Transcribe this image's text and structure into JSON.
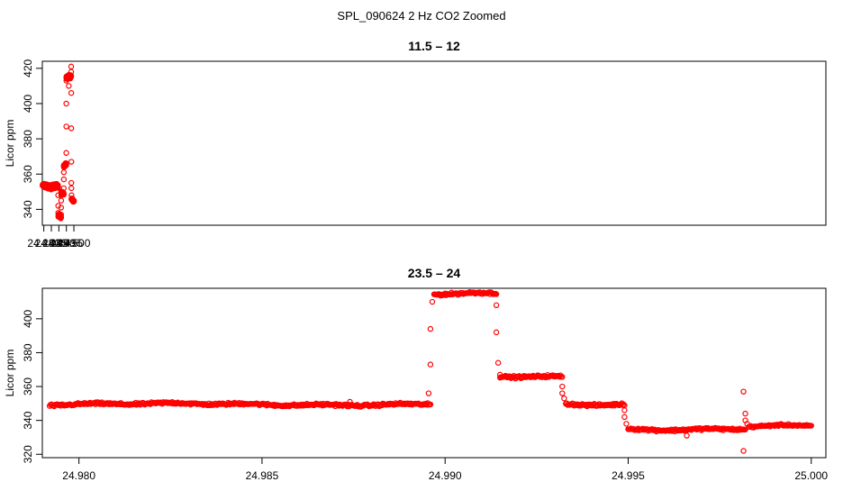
{
  "figure": {
    "title": "SPL_090624  2 Hz CO2 Zoomed",
    "point_color": "#ff0000"
  },
  "chart_data": [
    {
      "type": "scatter",
      "title": "11.5 – 12",
      "xlabel": "",
      "ylabel": "Licor ppm",
      "xlim": [
        24.479,
        25.0004
      ],
      "ylim": [
        331,
        424
      ],
      "xticks": [
        "24.480",
        "24.485",
        "24.490",
        "24.495",
        "24.500"
      ],
      "xtick_values": [
        24.48,
        24.485,
        24.49,
        24.495,
        24.5
      ],
      "yticks": [
        "340",
        "360",
        "380",
        "400",
        "420"
      ],
      "ytick_values": [
        340,
        360,
        380,
        400,
        420
      ],
      "marker": "open-circle",
      "segments": [
        {
          "x0": 24.4792,
          "x1": 24.4895,
          "y": 353,
          "noise": 1.2
        },
        {
          "x0": 24.4897,
          "x1": 24.4914,
          "y": 336,
          "noise": 1.0
        },
        {
          "x0": 24.4916,
          "x1": 24.4932,
          "y": 349.5,
          "noise": 1.0
        },
        {
          "x0": 24.4933,
          "x1": 24.4949,
          "y": 365.5,
          "noise": 1.0
        },
        {
          "x0": 24.495,
          "x1": 24.4982,
          "y": 415,
          "noise": 1.0
        },
        {
          "x0": 24.4984,
          "x1": 24.5,
          "y": 345,
          "noise": 0.8
        }
      ],
      "transitions": [
        {
          "x": 24.48955,
          "y": 348
        },
        {
          "x": 24.4896,
          "y": 342
        },
        {
          "x": 24.4896,
          "y": 338
        },
        {
          "x": 24.4915,
          "y": 337
        },
        {
          "x": 24.4915,
          "y": 341
        },
        {
          "x": 24.49155,
          "y": 345
        },
        {
          "x": 24.4916,
          "y": 348
        },
        {
          "x": 24.49325,
          "y": 352
        },
        {
          "x": 24.4933,
          "y": 357
        },
        {
          "x": 24.4933,
          "y": 361
        },
        {
          "x": 24.49335,
          "y": 364
        },
        {
          "x": 24.49495,
          "y": 372
        },
        {
          "x": 24.49495,
          "y": 387
        },
        {
          "x": 24.49495,
          "y": 400
        },
        {
          "x": 24.495,
          "y": 413
        },
        {
          "x": 24.4982,
          "y": 421
        },
        {
          "x": 24.4982,
          "y": 418
        },
        {
          "x": 24.49825,
          "y": 406
        },
        {
          "x": 24.49825,
          "y": 386
        },
        {
          "x": 24.4983,
          "y": 367
        },
        {
          "x": 24.4983,
          "y": 355
        },
        {
          "x": 24.49835,
          "y": 352
        },
        {
          "x": 24.4984,
          "y": 348
        },
        {
          "x": 24.4966,
          "y": 410
        }
      ]
    },
    {
      "type": "scatter",
      "title": "23.5 – 24",
      "xlabel": "",
      "ylabel": "Licor ppm",
      "xlim": [
        24.979,
        25.0004
      ],
      "ylim": [
        318,
        418
      ],
      "xticks": [
        "24.980",
        "24.985",
        "24.990",
        "24.995",
        "25.000"
      ],
      "xtick_values": [
        24.98,
        24.985,
        24.99,
        24.995,
        25.0
      ],
      "yticks": [
        "320",
        "340",
        "360",
        "380",
        "400"
      ],
      "ytick_values": [
        320,
        340,
        360,
        380,
        400
      ],
      "marker": "open-circle",
      "segments": [
        {
          "x0": 24.9792,
          "x1": 24.9896,
          "y": 349.5,
          "noise": 1.0
        },
        {
          "x0": 24.9897,
          "x1": 24.9914,
          "y": 414.5,
          "noise": 1.0
        },
        {
          "x0": 24.9915,
          "x1": 24.9932,
          "y": 365.5,
          "noise": 1.0
        },
        {
          "x0": 24.9933,
          "x1": 24.9949,
          "y": 349.5,
          "noise": 1.0
        },
        {
          "x0": 24.995,
          "x1": 24.9982,
          "y": 335,
          "noise": 1.0
        },
        {
          "x0": 24.9983,
          "x1": 25.0,
          "y": 336.5,
          "noise": 0.8
        }
      ],
      "transitions": [
        {
          "x": 24.98955,
          "y": 356
        },
        {
          "x": 24.9896,
          "y": 373
        },
        {
          "x": 24.9896,
          "y": 394
        },
        {
          "x": 24.98965,
          "y": 410
        },
        {
          "x": 24.9914,
          "y": 408
        },
        {
          "x": 24.9914,
          "y": 392
        },
        {
          "x": 24.99145,
          "y": 374
        },
        {
          "x": 24.9915,
          "y": 367
        },
        {
          "x": 24.9932,
          "y": 360
        },
        {
          "x": 24.9932,
          "y": 356
        },
        {
          "x": 24.99325,
          "y": 353
        },
        {
          "x": 24.9933,
          "y": 350
        },
        {
          "x": 24.9949,
          "y": 346
        },
        {
          "x": 24.9949,
          "y": 342
        },
        {
          "x": 24.99495,
          "y": 338
        },
        {
          "x": 24.99815,
          "y": 322
        },
        {
          "x": 24.99815,
          "y": 357
        },
        {
          "x": 24.9982,
          "y": 344
        },
        {
          "x": 24.9982,
          "y": 340
        },
        {
          "x": 24.99825,
          "y": 338
        },
        {
          "x": 24.9966,
          "y": 331
        },
        {
          "x": 24.9874,
          "y": 351
        }
      ]
    }
  ]
}
